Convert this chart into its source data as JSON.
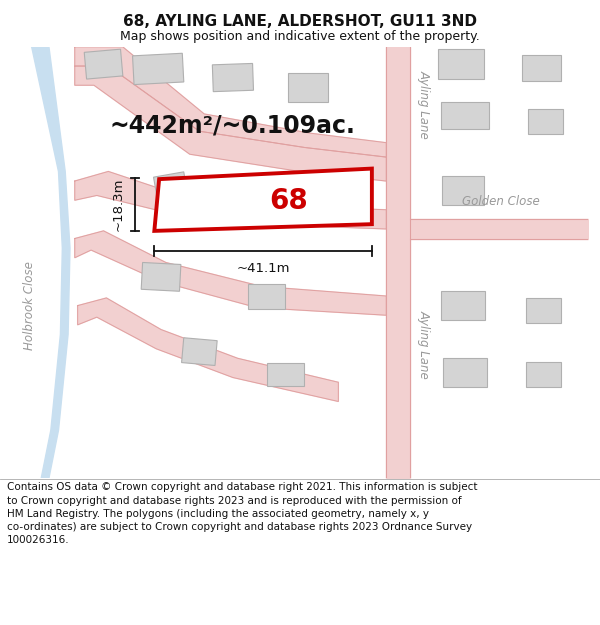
{
  "title": "68, AYLING LANE, ALDERSHOT, GU11 3ND",
  "subtitle": "Map shows position and indicative extent of the property.",
  "footer": "Contains OS data © Crown copyright and database right 2021. This information is subject\nto Crown copyright and database rights 2023 and is reproduced with the permission of\nHM Land Registry. The polygons (including the associated geometry, namely x, y\nco-ordinates) are subject to Crown copyright and database rights 2023 Ordnance Survey\n100026316.",
  "area_text": "~442m²/~0.109ac.",
  "width_label": "~41.1m",
  "height_label": "~18.3m",
  "property_number": "68",
  "bg_color": "#ffffff",
  "map_bg": "#f8f8f8",
  "road_color": "#f2d0d0",
  "road_stroke": "#e0a0a0",
  "building_fill": "#d4d4d4",
  "building_stroke": "#b0b0b0",
  "highlight_color": "#cc0000",
  "highlight_fill": "#ffffff",
  "water_color": "#c8dff0",
  "dim_line_color": "#111111",
  "text_color": "#111111",
  "road_label_color": "#999999",
  "title_fontsize": 11,
  "subtitle_fontsize": 9,
  "footer_fontsize": 7.5,
  "area_fontsize": 17,
  "number_fontsize": 20,
  "dim_fontsize": 9.5,
  "road_label_fontsize": 8.5
}
